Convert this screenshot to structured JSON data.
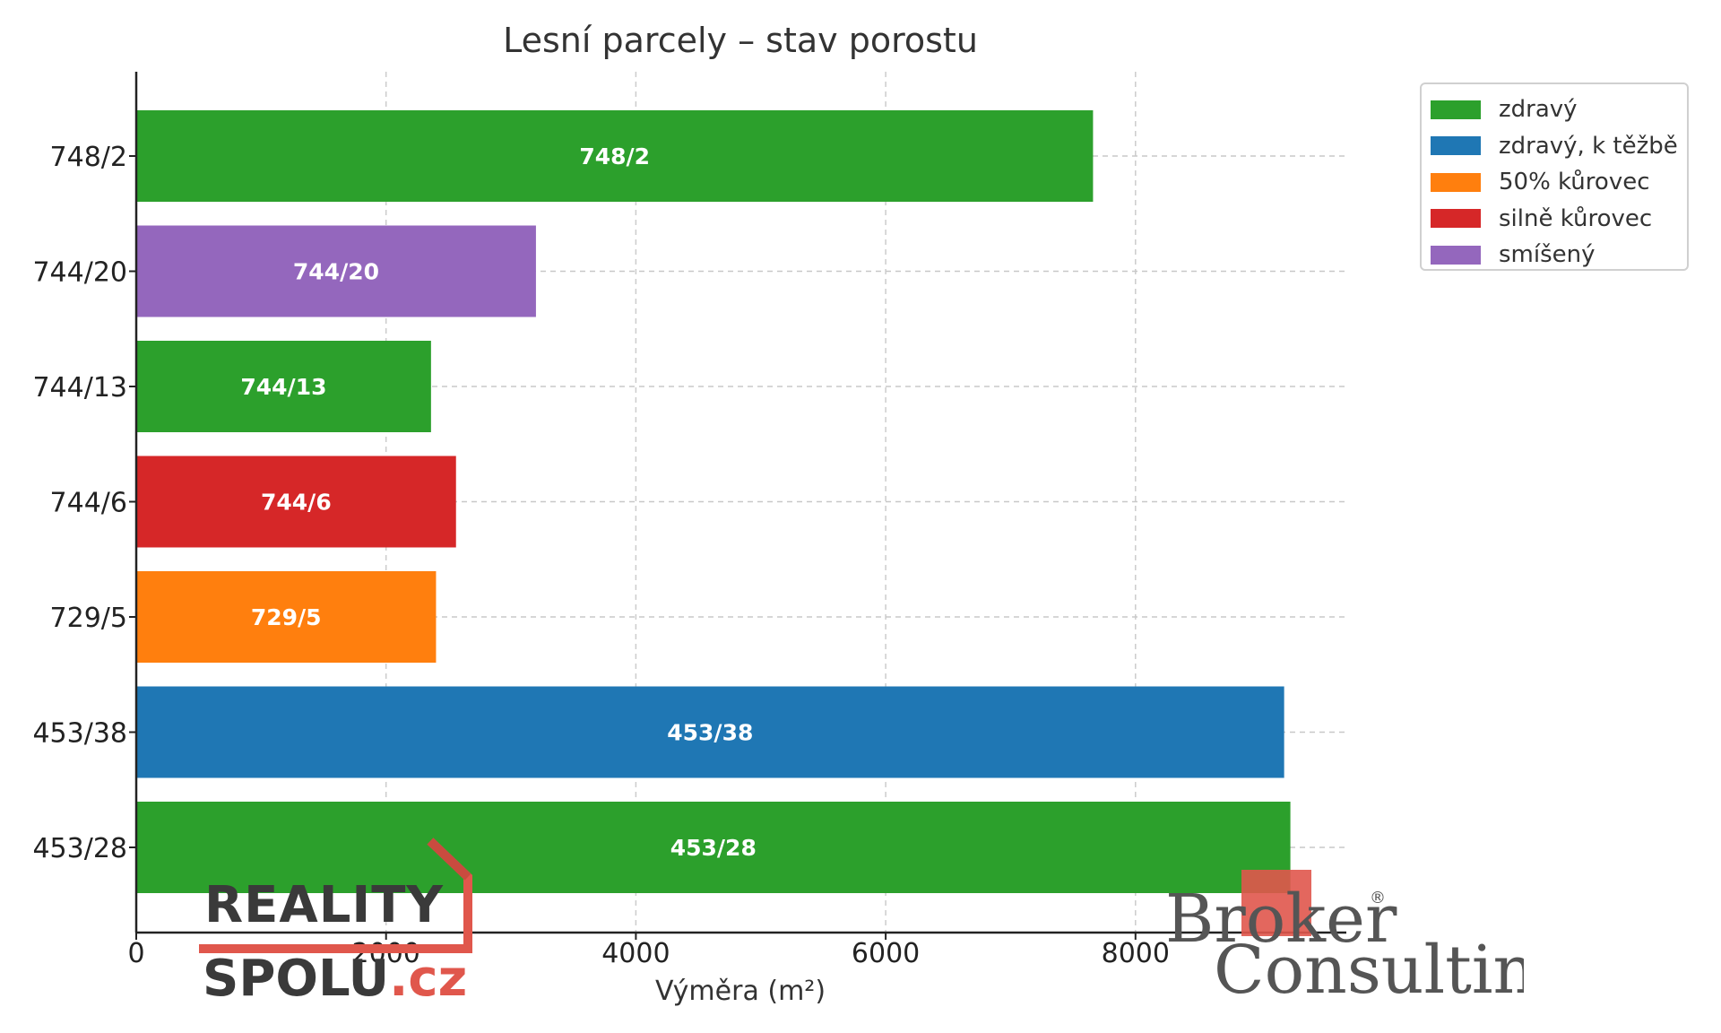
{
  "chart_data": {
    "type": "bar",
    "orientation": "horizontal",
    "title": "Lesní parcely – stav porostu",
    "xlabel": "Výměra (m²)",
    "ylabel": "",
    "xlim": [
      0,
      9700
    ],
    "xticks": [
      0,
      2000,
      4000,
      6000,
      8000
    ],
    "grid": true,
    "legend_position": "top-right",
    "categories": [
      "748/2",
      "744/20",
      "744/13",
      "744/6",
      "729/5",
      "453/38",
      "453/28"
    ],
    "values": [
      7660,
      3200,
      2360,
      2560,
      2400,
      9190,
      9240
    ],
    "status": [
      "zdravý",
      "smíšený",
      "zdravý",
      "silně kůrovec",
      "50% kůrovec",
      "zdravý, k těžbě",
      "zdravý"
    ],
    "data_labels": [
      "748/2",
      "744/20",
      "744/13",
      "744/6",
      "729/5",
      "453/38",
      "453/28"
    ],
    "legend": [
      {
        "label": "zdravý",
        "color": "#2ca02c"
      },
      {
        "label": "zdravý, k těžbě",
        "color": "#1f77b4"
      },
      {
        "label": "50% kůrovec",
        "color": "#ff7f0e"
      },
      {
        "label": "silně kůrovec",
        "color": "#d62728"
      },
      {
        "label": "smíšený",
        "color": "#9467bd"
      }
    ]
  },
  "logos": {
    "reality": {
      "line1": "REALITY",
      "line2_main": "SPOLU",
      "line2_suffix": ".cz"
    },
    "broker": {
      "word1": "Broker",
      "word2": "Consulting",
      "mark": "®"
    }
  }
}
